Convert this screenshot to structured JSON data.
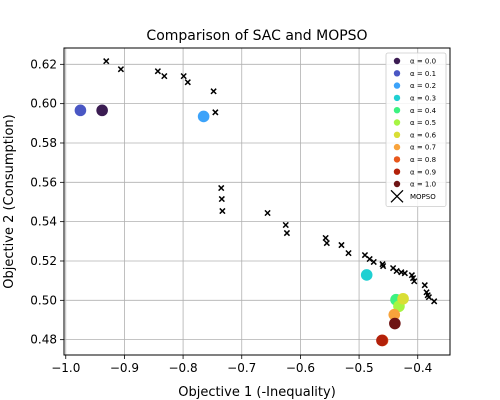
{
  "chart_data": {
    "type": "scatter",
    "title": "Comparison of SAC and MOPSO",
    "xlabel": "Objective 1 (-Inequality)",
    "ylabel": "Objective 2 (Consumption)",
    "xlim": [
      -1.003,
      -0.345
    ],
    "ylim": [
      0.4722,
      0.6283
    ],
    "x_ticks": [
      -1.0,
      -0.9,
      -0.8,
      -0.7,
      -0.6,
      -0.5,
      -0.4
    ],
    "x_tick_labels": [
      "−1.0",
      "−0.9",
      "−0.8",
      "−0.7",
      "−0.6",
      "−0.5",
      "−0.4"
    ],
    "y_ticks": [
      0.48,
      0.5,
      0.52,
      0.54,
      0.56,
      0.58,
      0.6,
      0.62
    ],
    "y_tick_labels": [
      "0.48",
      "0.50",
      "0.52",
      "0.54",
      "0.56",
      "0.58",
      "0.60",
      "0.62"
    ],
    "grid": true,
    "legend_position": "top-right",
    "sac_series": [
      {
        "name": "α = 0.0",
        "color": "#3b1c52",
        "x": -0.938,
        "y": 0.5966
      },
      {
        "name": "α = 0.1",
        "color": "#4a57c4",
        "x": -0.975,
        "y": 0.5966
      },
      {
        "name": "α = 0.2",
        "color": "#3ca3fa",
        "x": -0.765,
        "y": 0.5935
      },
      {
        "name": "α = 0.3",
        "color": "#1fd0d2",
        "x": -0.487,
        "y": 0.5129
      },
      {
        "name": "α = 0.4",
        "color": "#3cf281",
        "x": -0.437,
        "y": 0.5003
      },
      {
        "name": "α = 0.5",
        "color": "#a6f542",
        "x": -0.432,
        "y": 0.497
      },
      {
        "name": "α = 0.6",
        "color": "#d9de35",
        "x": -0.425,
        "y": 0.5008
      },
      {
        "name": "α = 0.7",
        "color": "#f8a33c",
        "x": -0.44,
        "y": 0.4927
      },
      {
        "name": "α = 0.8",
        "color": "#e8581c",
        "x": -0.46,
        "y": 0.4796
      },
      {
        "name": "α = 0.9",
        "color": "#b3210a",
        "x": -0.461,
        "y": 0.4796
      },
      {
        "name": "α = 1.0",
        "color": "#6e1414",
        "x": -0.439,
        "y": 0.4882
      }
    ],
    "mopso": {
      "name": "MOPSO",
      "color": "#000000",
      "points": [
        [
          -0.931,
          0.6216
        ],
        [
          -0.906,
          0.6175
        ],
        [
          -0.843,
          0.6165
        ],
        [
          -0.832,
          0.614
        ],
        [
          -0.799,
          0.614
        ],
        [
          -0.792,
          0.6109
        ],
        [
          -0.748,
          0.6063
        ],
        [
          -0.745,
          0.5956
        ],
        [
          -0.735,
          0.5571
        ],
        [
          -0.734,
          0.5515
        ],
        [
          -0.733,
          0.5454
        ],
        [
          -0.656,
          0.5444
        ],
        [
          -0.625,
          0.5383
        ],
        [
          -0.623,
          0.5342
        ],
        [
          -0.557,
          0.5317
        ],
        [
          -0.555,
          0.5291
        ],
        [
          -0.53,
          0.5281
        ],
        [
          -0.518,
          0.524
        ],
        [
          -0.49,
          0.523
        ],
        [
          -0.482,
          0.521
        ],
        [
          -0.475,
          0.5195
        ],
        [
          -0.46,
          0.5184
        ],
        [
          -0.459,
          0.5174
        ],
        [
          -0.442,
          0.5164
        ],
        [
          -0.436,
          0.5149
        ],
        [
          -0.428,
          0.5143
        ],
        [
          -0.422,
          0.5138
        ],
        [
          -0.41,
          0.5128
        ],
        [
          -0.408,
          0.5113
        ],
        [
          -0.406,
          0.5097
        ],
        [
          -0.388,
          0.5077
        ],
        [
          -0.385,
          0.5041
        ],
        [
          -0.383,
          0.5026
        ],
        [
          -0.381,
          0.5016
        ],
        [
          -0.372,
          0.4995
        ]
      ]
    }
  }
}
